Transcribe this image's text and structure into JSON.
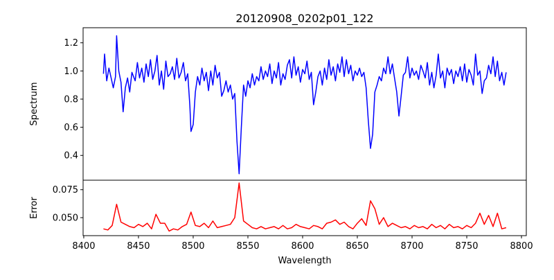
{
  "chart_data": [
    {
      "type": "line",
      "title": "20120908_0202p01_122",
      "xlabel": "",
      "ylabel": "Spectrum",
      "xlim": [
        8399.4,
        8804.4
      ],
      "ylim": [
        0.224,
        1.307
      ],
      "xticks": [
        8400,
        8450,
        8500,
        8550,
        8600,
        8650,
        8700,
        8750,
        8800
      ],
      "yticks": [
        "0.4",
        "0.6",
        "0.8",
        "1.0",
        "1.2"
      ],
      "color": "#0000ff",
      "x": [
        8418,
        8419,
        8421,
        8423,
        8425,
        8427,
        8429,
        8430,
        8432,
        8434,
        8436,
        8438,
        8440,
        8442,
        8444,
        8447,
        8449,
        8451,
        8453,
        8455,
        8457,
        8459,
        8461,
        8463,
        8465,
        8467,
        8469,
        8471,
        8473,
        8475,
        8477,
        8479,
        8481,
        8483,
        8485,
        8487,
        8489,
        8491,
        8493,
        8495,
        8497,
        8498,
        8500,
        8502,
        8504,
        8506,
        8508,
        8510,
        8512,
        8514,
        8516,
        8518,
        8520,
        8522,
        8524,
        8526,
        8528,
        8530,
        8532,
        8534,
        8536,
        8538,
        8540,
        8542,
        8544,
        8546,
        8548,
        8550,
        8552,
        8554,
        8556,
        8558,
        8560,
        8562,
        8564,
        8566,
        8568,
        8570,
        8572,
        8574,
        8576,
        8578,
        8580,
        8582,
        8584,
        8586,
        8588,
        8590,
        8592,
        8594,
        8596,
        8598,
        8600,
        8602,
        8604,
        8606,
        8608,
        8610,
        8612,
        8614,
        8616,
        8618,
        8620,
        8622,
        8624,
        8626,
        8628,
        8630,
        8632,
        8634,
        8636,
        8638,
        8640,
        8642,
        8644,
        8646,
        8648,
        8650,
        8652,
        8654,
        8656,
        8658,
        8660,
        8662,
        8664,
        8666,
        8668,
        8670,
        8672,
        8674,
        8676,
        8678,
        8680,
        8682,
        8684,
        8686,
        8688,
        8690,
        8692,
        8694,
        8696,
        8698,
        8700,
        8702,
        8704,
        8706,
        8708,
        8710,
        8712,
        8714,
        8716,
        8718,
        8720,
        8722,
        8724,
        8726,
        8728,
        8730,
        8732,
        8734,
        8736,
        8738,
        8740,
        8742,
        8744,
        8746,
        8748,
        8750,
        8752,
        8754,
        8756,
        8758,
        8760,
        8762,
        8764,
        8766,
        8768,
        8770,
        8772,
        8774,
        8776,
        8778,
        8780,
        8782,
        8784,
        8786
      ],
      "y": [
        0.98,
        1.12,
        0.93,
        1.02,
        0.95,
        0.88,
        0.96,
        1.25,
        1.0,
        0.92,
        0.71,
        0.88,
        0.95,
        0.85,
        0.99,
        0.93,
        1.06,
        0.95,
        1.02,
        0.92,
        1.05,
        0.96,
        1.08,
        0.94,
        1.0,
        1.11,
        0.9,
        1.0,
        0.87,
        1.07,
        0.96,
        0.98,
        1.03,
        0.94,
        1.09,
        0.95,
        0.99,
        1.06,
        0.93,
        0.98,
        0.75,
        0.57,
        0.62,
        0.85,
        0.96,
        0.9,
        1.02,
        0.93,
        0.99,
        0.86,
        1.0,
        0.9,
        1.04,
        0.95,
        0.99,
        0.82,
        0.86,
        0.93,
        0.85,
        0.9,
        0.8,
        0.84,
        0.5,
        0.27,
        0.6,
        0.9,
        0.82,
        0.93,
        0.88,
        0.98,
        0.9,
        0.96,
        0.93,
        1.03,
        0.94,
        1.0,
        0.96,
        1.05,
        0.91,
        1.0,
        0.95,
        1.06,
        0.9,
        0.98,
        0.94,
        1.04,
        1.08,
        0.95,
        1.1,
        0.97,
        1.03,
        0.92,
        1.01,
        0.98,
        1.07,
        0.94,
        0.99,
        0.76,
        0.85,
        0.96,
        1.0,
        0.9,
        1.02,
        0.94,
        1.08,
        0.97,
        1.03,
        0.93,
        1.05,
        0.99,
        1.1,
        0.96,
        1.08,
        0.98,
        1.04,
        0.93,
        1.0,
        0.97,
        1.02,
        0.96,
        0.99,
        0.88,
        0.65,
        0.45,
        0.55,
        0.85,
        0.9,
        0.96,
        0.93,
        1.02,
        0.98,
        1.1,
        0.98,
        1.05,
        0.95,
        0.85,
        0.68,
        0.82,
        0.97,
        0.99,
        1.1,
        0.95,
        1.02,
        0.97,
        1.0,
        0.94,
        1.04,
        1.0,
        0.95,
        1.06,
        0.9,
        0.99,
        0.88,
        0.97,
        1.12,
        0.95,
        1.0,
        0.88,
        1.02,
        0.97,
        1.01,
        0.91,
        1.0,
        0.96,
        1.03,
        0.93,
        1.05,
        0.92,
        1.01,
        0.97,
        0.9,
        1.12,
        0.97,
        1.0,
        0.84,
        0.93,
        0.95,
        1.04,
        0.98,
        1.1,
        0.96,
        1.07,
        0.93,
        0.99,
        0.9,
        0.99
      ]
    },
    {
      "type": "line",
      "title": "",
      "xlabel": "Wavelength",
      "ylabel": "Error",
      "xlim": [
        8399.4,
        8804.4
      ],
      "ylim": [
        0.0339,
        0.0835
      ],
      "xticks": [
        8400,
        8450,
        8500,
        8550,
        8600,
        8650,
        8700,
        8750,
        8800
      ],
      "yticks": [
        "0.050",
        "0.075"
      ],
      "color": "#ff0000",
      "x": [
        8418,
        8422,
        8426,
        8430,
        8434,
        8438,
        8442,
        8446,
        8450,
        8454,
        8458,
        8462,
        8466,
        8470,
        8474,
        8478,
        8482,
        8486,
        8490,
        8494,
        8498,
        8502,
        8506,
        8510,
        8514,
        8518,
        8522,
        8526,
        8530,
        8534,
        8538,
        8542,
        8546,
        8550,
        8554,
        8558,
        8562,
        8566,
        8570,
        8574,
        8578,
        8582,
        8586,
        8590,
        8594,
        8598,
        8602,
        8606,
        8610,
        8614,
        8618,
        8622,
        8626,
        8630,
        8634,
        8638,
        8642,
        8646,
        8650,
        8654,
        8658,
        8662,
        8666,
        8670,
        8674,
        8678,
        8682,
        8686,
        8690,
        8694,
        8698,
        8702,
        8706,
        8710,
        8714,
        8718,
        8722,
        8726,
        8730,
        8734,
        8738,
        8742,
        8746,
        8750,
        8754,
        8758,
        8762,
        8766,
        8770,
        8774,
        8778,
        8782,
        8786
      ],
      "y": [
        0.04,
        0.039,
        0.043,
        0.062,
        0.046,
        0.044,
        0.042,
        0.041,
        0.044,
        0.042,
        0.045,
        0.04,
        0.053,
        0.045,
        0.045,
        0.038,
        0.04,
        0.039,
        0.042,
        0.044,
        0.055,
        0.043,
        0.042,
        0.045,
        0.041,
        0.047,
        0.041,
        0.042,
        0.043,
        0.044,
        0.05,
        0.081,
        0.047,
        0.044,
        0.041,
        0.04,
        0.042,
        0.04,
        0.041,
        0.042,
        0.04,
        0.043,
        0.04,
        0.041,
        0.044,
        0.042,
        0.041,
        0.04,
        0.043,
        0.042,
        0.04,
        0.045,
        0.046,
        0.048,
        0.044,
        0.046,
        0.042,
        0.04,
        0.045,
        0.049,
        0.043,
        0.065,
        0.058,
        0.044,
        0.05,
        0.042,
        0.045,
        0.043,
        0.041,
        0.042,
        0.04,
        0.043,
        0.041,
        0.042,
        0.04,
        0.044,
        0.041,
        0.043,
        0.04,
        0.044,
        0.041,
        0.042,
        0.04,
        0.043,
        0.041,
        0.045,
        0.054,
        0.044,
        0.052,
        0.042,
        0.054,
        0.04,
        0.041
      ]
    }
  ]
}
